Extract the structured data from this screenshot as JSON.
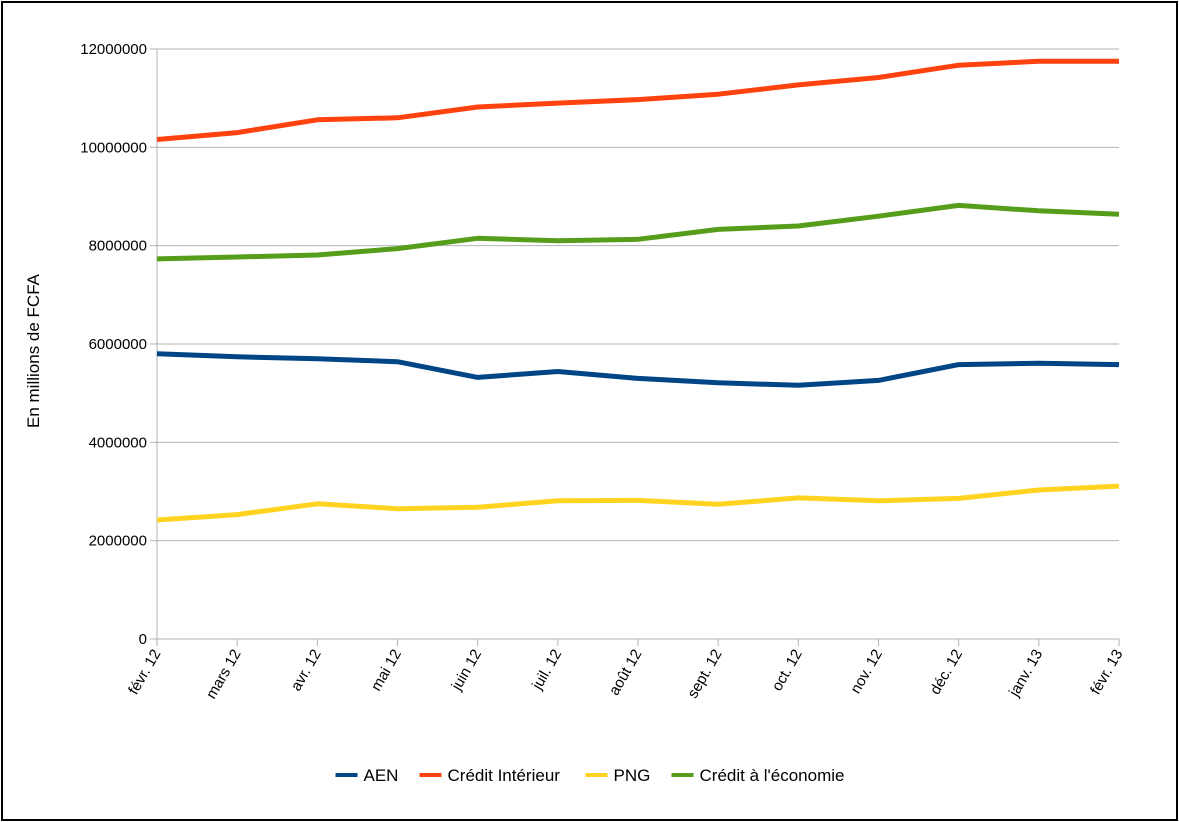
{
  "chart_data": {
    "type": "line",
    "ylabel": "En millions de FCFA",
    "ylim": [
      0,
      12000000
    ],
    "yticks": [
      0,
      2000000,
      4000000,
      6000000,
      8000000,
      10000000,
      12000000
    ],
    "ytick_labels": [
      "0",
      "2000000",
      "4000000",
      "6000000",
      "8000000",
      "10000000",
      "12000000"
    ],
    "grid": "horizontal",
    "legend": "bottom",
    "categories": [
      "févr. 12",
      "mars 12",
      "avr. 12",
      "mai 12",
      "juin 12",
      "juil. 12",
      "août 12",
      "sept. 12",
      "oct. 12",
      "nov. 12",
      "déc. 12",
      "janv. 13",
      "févr. 13"
    ],
    "series": [
      {
        "name": "AEN",
        "color": "#004586",
        "values": [
          5800000,
          5740000,
          5700000,
          5640000,
          5320000,
          5440000,
          5300000,
          5210000,
          5160000,
          5260000,
          5580000,
          5610000,
          5580000
        ]
      },
      {
        "name": "Crédit Intérieur",
        "color": "#ff420e",
        "values": [
          10160000,
          10300000,
          10560000,
          10600000,
          10820000,
          10900000,
          10970000,
          11080000,
          11270000,
          11420000,
          11670000,
          11750000,
          11750000
        ]
      },
      {
        "name": "PNG",
        "color": "#ffd320",
        "values": [
          2420000,
          2530000,
          2750000,
          2650000,
          2680000,
          2810000,
          2820000,
          2740000,
          2870000,
          2810000,
          2860000,
          3030000,
          3110000
        ]
      },
      {
        "name": "Crédit à l'économie",
        "color": "#579d1c",
        "values": [
          7730000,
          7770000,
          7810000,
          7940000,
          8150000,
          8100000,
          8130000,
          8330000,
          8400000,
          8600000,
          8820000,
          8710000,
          8640000
        ]
      }
    ]
  }
}
